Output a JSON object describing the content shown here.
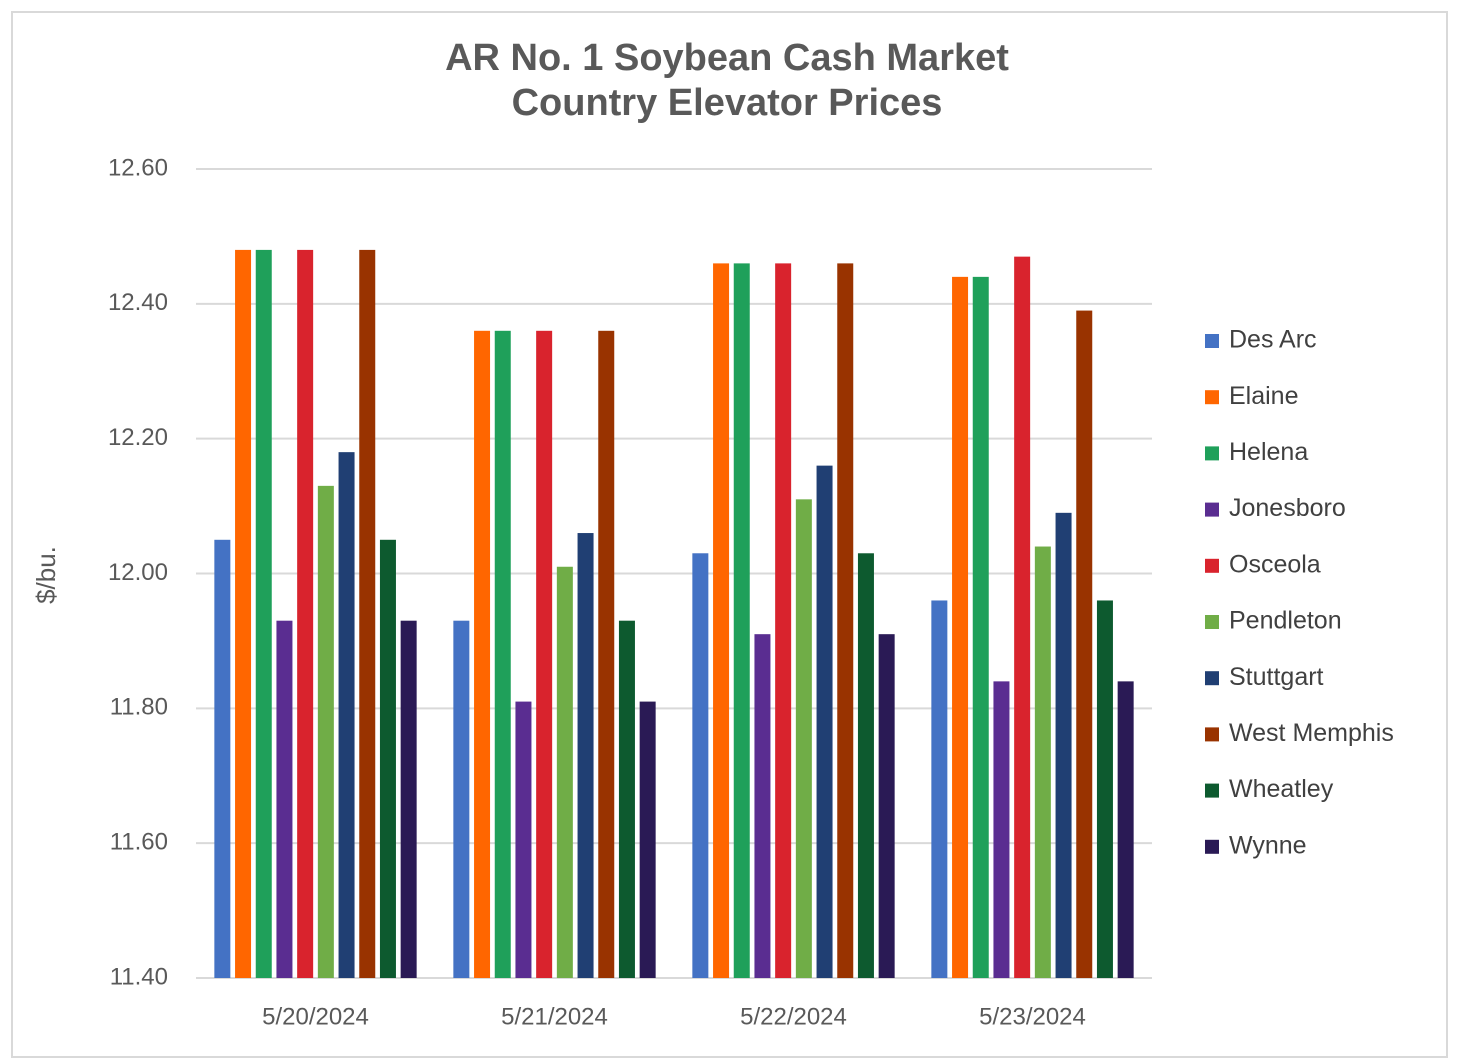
{
  "chart_data": {
    "type": "bar",
    "title": [
      "AR No. 1 Soybean Cash Market",
      "Country Elevator Prices"
    ],
    "y_label": "$/bu.",
    "categories": [
      "5/20/2024",
      "5/21/2024",
      "5/22/2024",
      "5/23/2024"
    ],
    "series": [
      {
        "name": "Des Arc",
        "color": "#4472c4",
        "values": [
          12.05,
          11.93,
          12.03,
          11.96
        ]
      },
      {
        "name": "Elaine",
        "color": "#ff6600",
        "values": [
          12.48,
          12.36,
          12.46,
          12.44
        ]
      },
      {
        "name": "Helena",
        "color": "#1fa05a",
        "values": [
          12.48,
          12.36,
          12.46,
          12.44
        ]
      },
      {
        "name": "Jonesboro",
        "color": "#5a2d91",
        "values": [
          11.93,
          11.81,
          11.91,
          11.84
        ]
      },
      {
        "name": "Osceola",
        "color": "#d9232d",
        "values": [
          12.48,
          12.36,
          12.46,
          12.47
        ]
      },
      {
        "name": "Pendleton",
        "color": "#70ad47",
        "values": [
          12.13,
          12.01,
          12.11,
          12.04
        ]
      },
      {
        "name": "Stuttgart",
        "color": "#203f73",
        "values": [
          12.18,
          12.06,
          12.16,
          12.09
        ]
      },
      {
        "name": "West Memphis",
        "color": "#993300",
        "values": [
          12.48,
          12.36,
          12.46,
          12.39
        ]
      },
      {
        "name": "Wheatley",
        "color": "#0d5a2f",
        "values": [
          12.05,
          11.93,
          12.03,
          11.96
        ]
      },
      {
        "name": "Wynne",
        "color": "#2a1a55",
        "values": [
          11.93,
          11.81,
          11.91,
          11.84
        ]
      }
    ],
    "ylim": [
      11.4,
      12.6
    ],
    "yticks": [
      {
        "value": 11.4,
        "label": "11.40"
      },
      {
        "value": 11.6,
        "label": "11.60"
      },
      {
        "value": 11.8,
        "label": "11.80"
      },
      {
        "value": 12.0,
        "label": "12.00"
      },
      {
        "value": 12.2,
        "label": "12.20"
      },
      {
        "value": 12.4,
        "label": "12.40"
      },
      {
        "value": 12.6,
        "label": "12.60"
      }
    ],
    "grid": true,
    "legend": "right"
  }
}
